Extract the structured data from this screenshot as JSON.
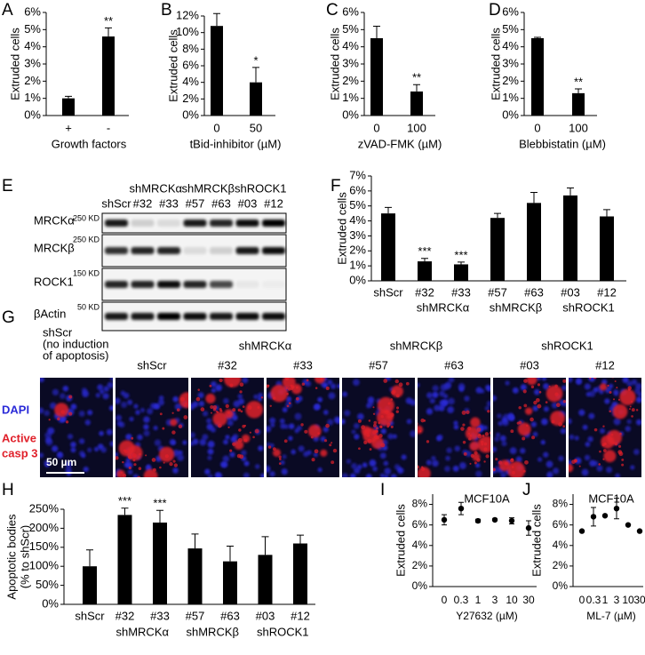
{
  "chart_data": [
    {
      "panel": "A",
      "type": "bar",
      "ylabel": "Extruded cells",
      "xlabel": "Growth factors",
      "categories": [
        "+",
        "-"
      ],
      "values": [
        1.0,
        4.6
      ],
      "errors": [
        0.12,
        0.5
      ],
      "significance": [
        null,
        "**"
      ],
      "color": "#000000",
      "ylim": [
        0,
        6
      ],
      "yticks": [
        {
          "value": 0,
          "label": "0%"
        },
        {
          "value": 1,
          "label": "1%"
        },
        {
          "value": 2,
          "label": "2%"
        },
        {
          "value": 3,
          "label": "3%"
        },
        {
          "value": 4,
          "label": "4%"
        },
        {
          "value": 5,
          "label": "5%"
        },
        {
          "value": 6,
          "label": "6%"
        }
      ]
    },
    {
      "panel": "B",
      "type": "bar",
      "ylabel": "Extruded cells",
      "xlabel": "tBid-inhibitor (µM)",
      "categories": [
        "0",
        "50"
      ],
      "values": [
        10.8,
        4.0
      ],
      "errors": [
        1.5,
        1.8
      ],
      "significance": [
        null,
        "*"
      ],
      "color": "#000000",
      "ylim": [
        0,
        12
      ],
      "yticks": [
        {
          "value": 0,
          "label": "0%"
        },
        {
          "value": 2,
          "label": "2%"
        },
        {
          "value": 4,
          "label": "4%"
        },
        {
          "value": 6,
          "label": "6%"
        },
        {
          "value": 8,
          "label": "8%"
        },
        {
          "value": 10,
          "label": "10%"
        },
        {
          "value": 12,
          "label": "12%"
        }
      ]
    },
    {
      "panel": "C",
      "type": "bar",
      "ylabel": "Extruded cells",
      "xlabel": "zVAD-FMK (µM)",
      "categories": [
        "0",
        "100"
      ],
      "values": [
        4.5,
        1.4
      ],
      "errors": [
        0.7,
        0.4
      ],
      "significance": [
        null,
        "**"
      ],
      "color": "#000000",
      "ylim": [
        0,
        6
      ],
      "yticks": [
        {
          "value": 0,
          "label": "0%"
        },
        {
          "value": 1,
          "label": "1%"
        },
        {
          "value": 2,
          "label": "2%"
        },
        {
          "value": 3,
          "label": "3%"
        },
        {
          "value": 4,
          "label": "4%"
        },
        {
          "value": 5,
          "label": "5%"
        },
        {
          "value": 6,
          "label": "6%"
        }
      ]
    },
    {
      "panel": "D",
      "type": "bar",
      "ylabel": "Extruded cells",
      "xlabel": "Blebbistatin (µM)",
      "categories": [
        "0",
        "100"
      ],
      "values": [
        4.5,
        1.3
      ],
      "errors": [
        0.05,
        0.25
      ],
      "significance": [
        null,
        "**"
      ],
      "color": "#000000",
      "ylim": [
        0,
        6
      ],
      "yticks": [
        {
          "value": 0,
          "label": "0%"
        },
        {
          "value": 1,
          "label": "1%"
        },
        {
          "value": 2,
          "label": "2%"
        },
        {
          "value": 3,
          "label": "3%"
        },
        {
          "value": 4,
          "label": "4%"
        },
        {
          "value": 5,
          "label": "5%"
        },
        {
          "value": 6,
          "label": "6%"
        }
      ]
    },
    {
      "panel": "F",
      "type": "bar",
      "ylabel": "Extruded cells",
      "categories": [
        "shScr",
        "#32",
        "#33",
        "#57",
        "#63",
        "#03",
        "#12"
      ],
      "group_labels": [
        "shMRCKα",
        "shMRCKβ",
        "shROCK1"
      ],
      "values": [
        4.5,
        1.3,
        1.1,
        4.2,
        5.2,
        5.7,
        4.3
      ],
      "errors": [
        0.4,
        0.2,
        0.15,
        0.3,
        0.7,
        0.5,
        0.45
      ],
      "significance": [
        null,
        "***",
        "***",
        null,
        null,
        null,
        null
      ],
      "color": "#000000",
      "ylim": [
        0,
        7
      ],
      "yticks": [
        {
          "value": 0,
          "label": "0%"
        },
        {
          "value": 1,
          "label": "1%"
        },
        {
          "value": 2,
          "label": "2%"
        },
        {
          "value": 3,
          "label": "3%"
        },
        {
          "value": 4,
          "label": "4%"
        },
        {
          "value": 5,
          "label": "5%"
        },
        {
          "value": 6,
          "label": "6%"
        },
        {
          "value": 7,
          "label": "7%"
        }
      ]
    },
    {
      "panel": "H",
      "type": "bar",
      "ylabel": [
        "Apoptotic bodies",
        "(% to shScr)"
      ],
      "categories": [
        "shScr",
        "#32",
        "#33",
        "#57",
        "#63",
        "#03",
        "#12"
      ],
      "group_labels": [
        "shMRCKα",
        "shMRCKβ",
        "shROCK1"
      ],
      "values": [
        100,
        235,
        215,
        147,
        113,
        130,
        160
      ],
      "errors": [
        43,
        18,
        32,
        38,
        40,
        48,
        22
      ],
      "significance": [
        null,
        "***",
        "***",
        null,
        null,
        null,
        null
      ],
      "color": "#000000",
      "ylim": [
        0,
        250
      ],
      "yticks": [
        {
          "value": 0,
          "label": "0%"
        },
        {
          "value": 50,
          "label": "50%"
        },
        {
          "value": 100,
          "label": "100%"
        },
        {
          "value": 150,
          "label": "150%"
        },
        {
          "value": 200,
          "label": "200%"
        },
        {
          "value": 250,
          "label": "250%"
        }
      ]
    },
    {
      "panel": "I",
      "type": "dot",
      "title": "MCF10A",
      "ylabel": "Extruded cells",
      "xlabel": "Y27632 (µM)",
      "categories": [
        "0",
        "0.3",
        "1",
        "3",
        "10",
        "30"
      ],
      "values": [
        6.5,
        7.6,
        6.4,
        6.5,
        6.4,
        5.7
      ],
      "errors": [
        0.5,
        0.6,
        0.15,
        0.1,
        0.3,
        0.7
      ],
      "color": "#000000",
      "ylim": [
        0,
        9
      ],
      "yticks": [
        {
          "value": 0,
          "label": "0%"
        },
        {
          "value": 2,
          "label": "2%"
        },
        {
          "value": 4,
          "label": "4%"
        },
        {
          "value": 6,
          "label": "6%"
        },
        {
          "value": 8,
          "label": "8%"
        }
      ]
    },
    {
      "panel": "J",
      "type": "dot",
      "title": "MCF10A",
      "ylabel": "Extruded cells",
      "xlabel": "ML-7 (µM)",
      "categories": [
        "0",
        "0.3",
        "1",
        "3",
        "10",
        "30"
      ],
      "values": [
        5.4,
        6.8,
        6.9,
        7.6,
        6.0,
        5.4
      ],
      "errors": [
        0,
        0.9,
        0,
        1.0,
        0,
        0
      ],
      "color": "#000000",
      "ylim": [
        0,
        9
      ],
      "yticks": [
        {
          "value": 0,
          "label": "0%"
        },
        {
          "value": 2,
          "label": "2%"
        },
        {
          "value": 4,
          "label": "4%"
        },
        {
          "value": 6,
          "label": "6%"
        },
        {
          "value": 8,
          "label": "8%"
        }
      ]
    }
  ],
  "blot": {
    "panel": "E",
    "group_labels": [
      "shMRCKα",
      "shMRCKβ",
      "shROCK1"
    ],
    "lanes": [
      "shScr",
      "#32",
      "#33",
      "#57",
      "#63",
      "#03",
      "#12"
    ],
    "rows": [
      {
        "label": "MRCKα",
        "marker": "250 KD",
        "intensity": [
          0.9,
          0.15,
          0.1,
          0.9,
          0.85,
          0.95,
          1.0
        ]
      },
      {
        "label": "MRCKβ",
        "marker": "250 KD",
        "intensity": [
          0.8,
          0.85,
          0.85,
          0.1,
          0.15,
          0.9,
          0.95
        ]
      },
      {
        "label": "ROCK1",
        "marker": "150 KD",
        "intensity": [
          0.85,
          0.85,
          0.95,
          0.85,
          0.7,
          0.05,
          0.03
        ]
      },
      {
        "label": "βActin",
        "marker": "50 KD",
        "intensity": [
          0.9,
          0.9,
          1.0,
          0.95,
          0.9,
          0.95,
          0.95
        ]
      }
    ]
  },
  "micrographs": {
    "panel": "G",
    "first_column": [
      "shScr",
      "(no induction",
      "of apoptosis)"
    ],
    "group_labels": [
      "shMRCKα",
      "shMRCKβ",
      "shROCK1"
    ],
    "columns": [
      "shScr",
      "#32",
      "#33",
      "#57",
      "#63",
      "#03",
      "#12"
    ],
    "channels": [
      {
        "label": [
          "DAPI"
        ],
        "color": "#2a2ad8"
      },
      {
        "label": [
          "Active",
          "casp 3"
        ],
        "color": "#e0202a"
      }
    ],
    "scale_bar": "50 µm"
  }
}
